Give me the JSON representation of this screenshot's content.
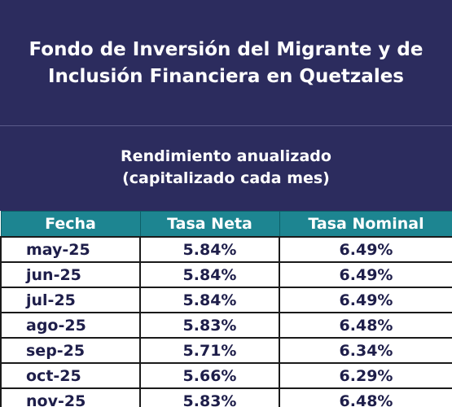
{
  "title": {
    "line1": "Fondo de Inversión del Migrante y de",
    "line2": "Inclusión Financiera en Quetzales"
  },
  "subtitle": {
    "line1": "Rendimiento anualizado",
    "line2": "(capitalizado cada mes)"
  },
  "table": {
    "headers": [
      "Fecha",
      "Tasa Neta",
      "Tasa Nominal"
    ],
    "rows": [
      {
        "fecha": "may-25",
        "neta": "5.84%",
        "nominal": "6.49%"
      },
      {
        "fecha": "jun-25",
        "neta": "5.84%",
        "nominal": "6.49%"
      },
      {
        "fecha": "jul-25",
        "neta": "5.84%",
        "nominal": "6.49%"
      },
      {
        "fecha": "ago-25",
        "neta": "5.83%",
        "nominal": "6.48%"
      },
      {
        "fecha": "sep-25",
        "neta": "5.71%",
        "nominal": "6.34%"
      },
      {
        "fecha": "oct-25",
        "neta": "5.66%",
        "nominal": "6.29%"
      },
      {
        "fecha": "nov-25",
        "neta": "5.83%",
        "nominal": "6.48%"
      }
    ]
  },
  "colors": {
    "title_background": "#2c2c5e",
    "header_background": "#1d8591",
    "cell_text": "#1e1e4a"
  }
}
